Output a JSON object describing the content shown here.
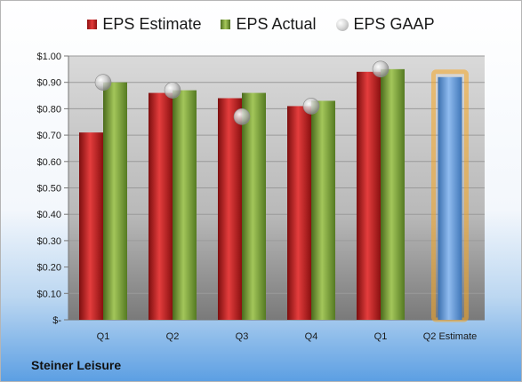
{
  "company": "Steiner Leisure",
  "chart_data": {
    "type": "bar",
    "categories": [
      "Q1",
      "Q2",
      "Q3",
      "Q4",
      "Q1",
      "Q2 Estimate"
    ],
    "series": [
      {
        "name": "EPS Estimate",
        "values": [
          0.71,
          0.86,
          0.84,
          0.81,
          0.94,
          null
        ]
      },
      {
        "name": "EPS Actual",
        "values": [
          0.9,
          0.87,
          0.86,
          0.83,
          0.95,
          null
        ]
      },
      {
        "name": "EPS GAAP",
        "values": [
          0.9,
          0.87,
          0.77,
          0.81,
          0.95,
          null
        ]
      },
      {
        "name": "Q2 Estimate",
        "values": [
          null,
          null,
          null,
          null,
          null,
          0.92
        ]
      }
    ],
    "ylim": [
      0,
      1.0
    ],
    "yticks": [
      0,
      0.1,
      0.2,
      0.3,
      0.4,
      0.5,
      0.6,
      0.7,
      0.8,
      0.9,
      1.0
    ],
    "ytick_labels": [
      "$-",
      "$0.10",
      "$0.20",
      "$0.30",
      "$0.40",
      "$0.50",
      "$0.60",
      "$0.70",
      "$0.80",
      "$0.90",
      "$1.00"
    ],
    "legend": [
      "EPS Estimate",
      "EPS Actual",
      "EPS GAAP"
    ],
    "legend_position": "top",
    "grid": true,
    "colors": {
      "estimate": "#c81e1e",
      "actual": "#7fa33a",
      "gaap": "#c8c8c8",
      "forecast": "#5b93d4",
      "forecast_glow": "#f5a623"
    }
  }
}
